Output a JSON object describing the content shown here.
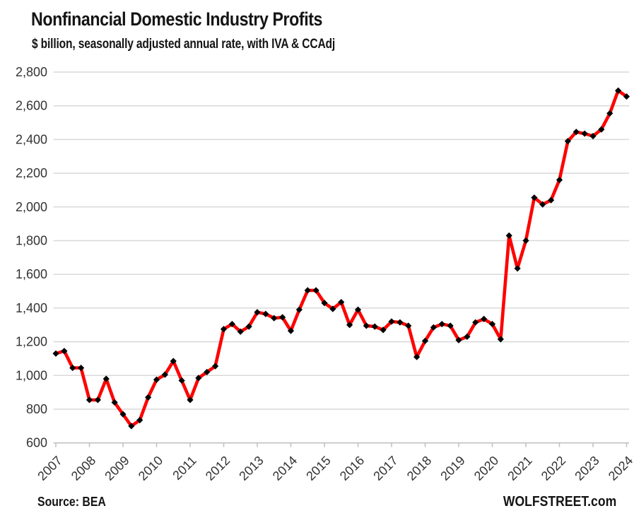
{
  "header": {
    "title": "Nonfinancial Domestic Industry Profits",
    "subtitle": "$ billion, seasonally adjusted annual rate, with IVA & CCAdj"
  },
  "footer": {
    "source": "Source: BEA",
    "branding": "WOLFSTREET.com"
  },
  "chart_data": {
    "type": "line",
    "title": "Nonfinancial Domestic Industry Profits",
    "subtitle": "$ billion, seasonally adjusted annual rate, with IVA & CCAdj",
    "xlabel": "",
    "ylabel": "",
    "ylim": [
      600,
      2800
    ],
    "y_tick_step": 200,
    "grid": "horizontal",
    "legend": "none",
    "x_tick_labels": [
      "2007",
      "2008",
      "2009",
      "2010",
      "2011",
      "2012",
      "2013",
      "2014",
      "2015",
      "2016",
      "2017",
      "2018",
      "2019",
      "2020",
      "2021",
      "2022",
      "2023",
      "2024"
    ],
    "categories": [
      "2007 Q1",
      "2007 Q2",
      "2007 Q3",
      "2007 Q4",
      "2008 Q1",
      "2008 Q2",
      "2008 Q3",
      "2008 Q4",
      "2009 Q1",
      "2009 Q2",
      "2009 Q3",
      "2009 Q4",
      "2010 Q1",
      "2010 Q2",
      "2010 Q3",
      "2010 Q4",
      "2011 Q1",
      "2011 Q2",
      "2011 Q3",
      "2011 Q4",
      "2012 Q1",
      "2012 Q2",
      "2012 Q3",
      "2012 Q4",
      "2013 Q1",
      "2013 Q2",
      "2013 Q3",
      "2013 Q4",
      "2014 Q1",
      "2014 Q2",
      "2014 Q3",
      "2014 Q4",
      "2015 Q1",
      "2015 Q2",
      "2015 Q3",
      "2015 Q4",
      "2016 Q1",
      "2016 Q2",
      "2016 Q3",
      "2016 Q4",
      "2017 Q1",
      "2017 Q2",
      "2017 Q3",
      "2017 Q4",
      "2018 Q1",
      "2018 Q2",
      "2018 Q3",
      "2018 Q4",
      "2019 Q1",
      "2019 Q2",
      "2019 Q3",
      "2019 Q4",
      "2020 Q1",
      "2020 Q2",
      "2020 Q3",
      "2020 Q4",
      "2021 Q1",
      "2021 Q2",
      "2021 Q3",
      "2021 Q4",
      "2022 Q1",
      "2022 Q2",
      "2022 Q3",
      "2022 Q4",
      "2023 Q1",
      "2023 Q2",
      "2023 Q3",
      "2023 Q4",
      "2024 Q1"
    ],
    "values": [
      1130,
      1145,
      1045,
      1045,
      855,
      855,
      980,
      840,
      770,
      700,
      735,
      870,
      975,
      1005,
      1085,
      970,
      855,
      985,
      1020,
      1055,
      1275,
      1305,
      1260,
      1290,
      1375,
      1365,
      1340,
      1345,
      1265,
      1390,
      1505,
      1505,
      1430,
      1395,
      1435,
      1300,
      1390,
      1295,
      1290,
      1270,
      1320,
      1315,
      1295,
      1110,
      1205,
      1285,
      1305,
      1295,
      1210,
      1230,
      1315,
      1335,
      1305,
      1215,
      1830,
      1635,
      1800,
      2055,
      2015,
      2040,
      2160,
      2390,
      2445,
      2435,
      2420,
      2460,
      2555,
      2690,
      2655
    ],
    "colors": {
      "line": "#ff0000",
      "marker": "#000000",
      "gridline": "#d9d9d9",
      "axis": "#bfbfbf",
      "tick_text": "#333333",
      "title_text": "#141414"
    }
  }
}
